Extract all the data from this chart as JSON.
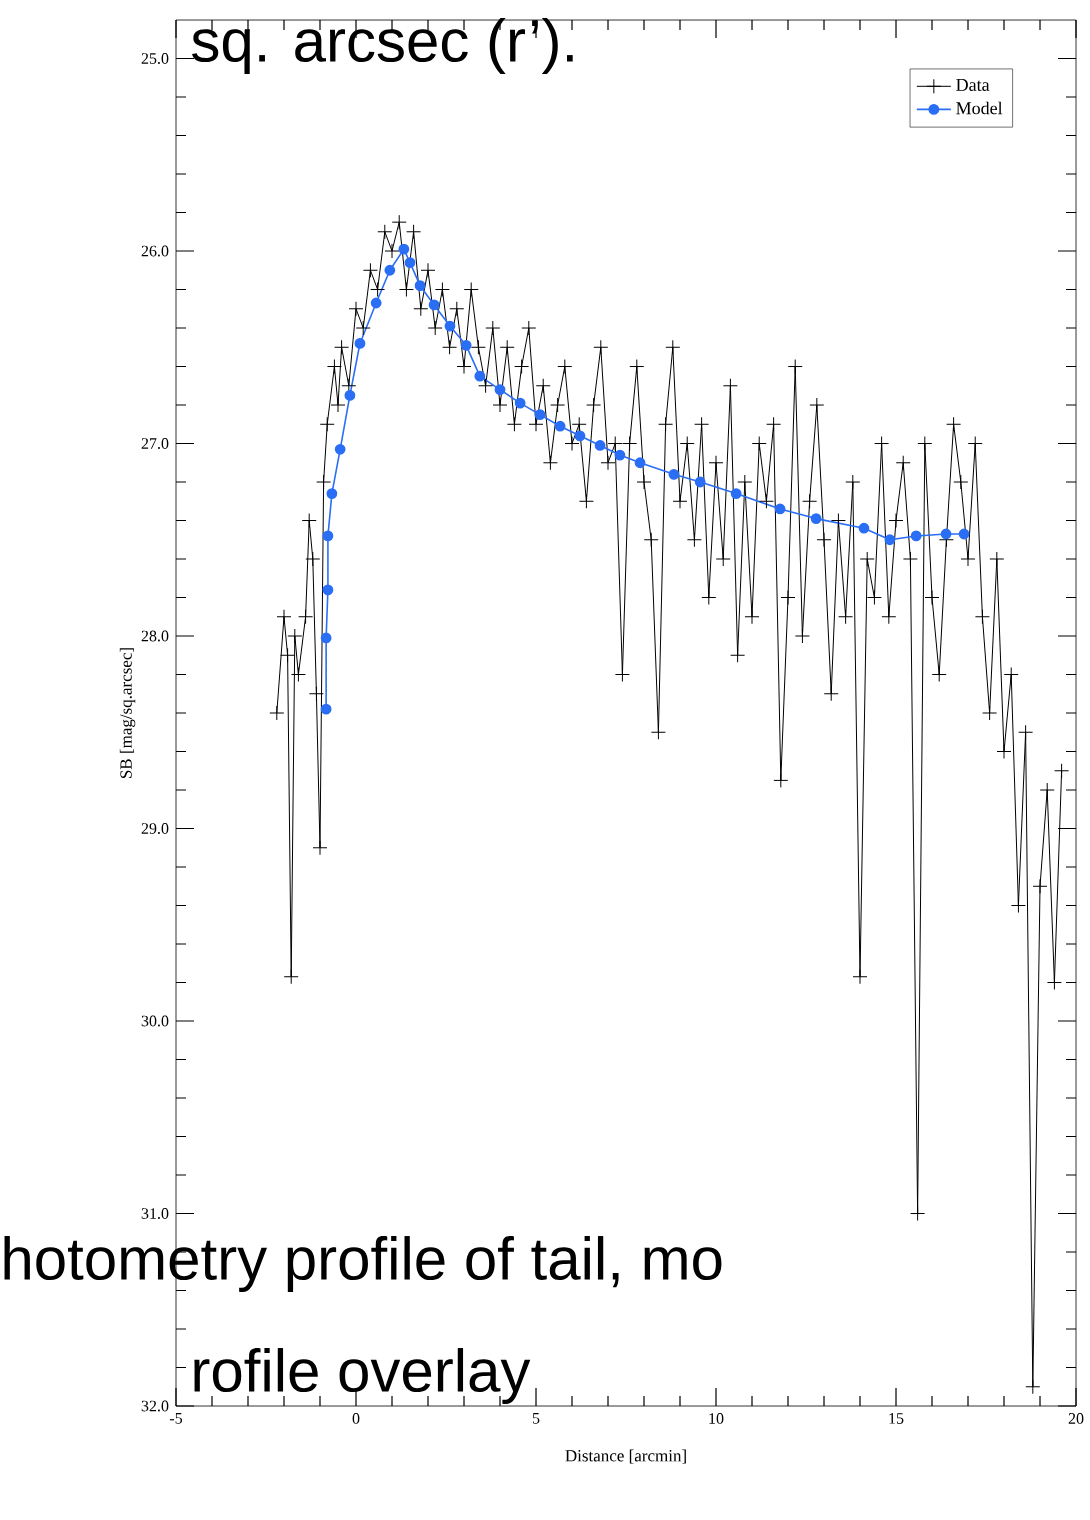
{
  "chart_data": {
    "type": "line",
    "xlabel": "Distance [arcmin]",
    "ylabel": "SB [mag/sq.arcsec]",
    "xlim": [
      -5,
      20
    ],
    "xticks": [
      -5,
      0,
      5,
      10,
      15,
      20
    ],
    "ylim": [
      32,
      24.8
    ],
    "yticks": [
      {
        "value": 25,
        "label": "25.0"
      },
      {
        "value": 26,
        "label": "26.0"
      },
      {
        "value": 27,
        "label": "27.0"
      },
      {
        "value": 28,
        "label": "28.0"
      },
      {
        "value": 29,
        "label": "29.0"
      },
      {
        "value": 30,
        "label": "30.0"
      },
      {
        "value": 31,
        "label": "31.0"
      },
      {
        "value": 32,
        "label": "32.0"
      }
    ],
    "legend": "top right",
    "annotations": [
      "sq. arcsec (r’).",
      "hotometry profile of tail, mo",
      "rofile overlay"
    ],
    "series": [
      {
        "name": "Data",
        "color": "#000000",
        "marker": "cross",
        "x": [
          -2.2,
          -2.0,
          -1.9,
          -1.8,
          -1.7,
          -1.6,
          -1.4,
          -1.3,
          -1.2,
          -1.1,
          -1.0,
          -0.9,
          -0.8,
          -0.6,
          -0.5,
          -0.4,
          -0.2,
          0.0,
          0.2,
          0.4,
          0.6,
          0.8,
          1.0,
          1.2,
          1.4,
          1.6,
          1.8,
          2.0,
          2.2,
          2.4,
          2.6,
          2.8,
          3.0,
          3.2,
          3.4,
          3.6,
          3.8,
          4.0,
          4.2,
          4.4,
          4.6,
          4.8,
          5.0,
          5.2,
          5.4,
          5.6,
          5.8,
          6.0,
          6.2,
          6.4,
          6.6,
          6.8,
          7.0,
          7.2,
          7.4,
          7.6,
          7.8,
          8.0,
          8.2,
          8.4,
          8.6,
          8.8,
          9.0,
          9.2,
          9.4,
          9.6,
          9.8,
          10.0,
          10.2,
          10.4,
          10.6,
          10.8,
          11.0,
          11.2,
          11.4,
          11.6,
          11.8,
          12.0,
          12.2,
          12.4,
          12.6,
          12.8,
          13.0,
          13.2,
          13.4,
          13.6,
          13.8,
          14.0,
          14.2,
          14.4,
          14.6,
          14.8,
          15.0,
          15.2,
          15.4,
          15.6,
          15.8,
          16.0,
          16.2,
          16.4,
          16.6,
          16.8,
          17.0,
          17.2,
          17.4,
          17.6,
          17.8,
          18.0,
          18.2,
          18.4,
          18.6,
          18.8,
          19.0,
          19.2,
          19.4,
          19.6
        ],
        "values": [
          28.4,
          27.9,
          28.1,
          29.77,
          28.0,
          28.2,
          27.9,
          27.4,
          27.6,
          28.3,
          29.1,
          27.2,
          26.9,
          26.6,
          26.8,
          26.5,
          26.7,
          26.3,
          26.4,
          26.1,
          26.2,
          25.9,
          26.0,
          25.85,
          26.2,
          25.9,
          26.3,
          26.1,
          26.4,
          26.2,
          26.5,
          26.3,
          26.6,
          26.2,
          26.5,
          26.7,
          26.4,
          26.8,
          26.5,
          26.9,
          26.6,
          26.4,
          26.9,
          26.7,
          27.1,
          26.8,
          26.6,
          27.0,
          26.9,
          27.3,
          26.8,
          26.5,
          27.1,
          27.0,
          28.2,
          27.0,
          26.6,
          27.2,
          27.5,
          28.5,
          26.9,
          26.5,
          27.3,
          27.0,
          27.5,
          26.9,
          27.8,
          27.1,
          27.6,
          26.7,
          28.1,
          27.2,
          27.9,
          27.0,
          27.3,
          26.9,
          28.75,
          27.8,
          26.6,
          28.0,
          27.3,
          26.8,
          27.5,
          28.3,
          27.4,
          27.9,
          27.2,
          29.77,
          27.6,
          27.8,
          27.0,
          27.9,
          27.4,
          27.1,
          27.6,
          31.0,
          27.0,
          27.8,
          28.2,
          27.5,
          26.9,
          27.2,
          27.6,
          27.0,
          27.9,
          28.4,
          27.6,
          28.6,
          28.2,
          29.4,
          28.5,
          31.9,
          29.3,
          28.8,
          29.8,
          28.7
        ]
      },
      {
        "name": "Model",
        "color": "#2a6ef5",
        "marker": "circle",
        "x": [
          -0.83,
          -0.83,
          -0.78,
          -0.78,
          -0.67,
          -0.44,
          -0.17,
          0.11,
          0.56,
          0.94,
          1.33,
          1.5,
          1.78,
          2.17,
          2.61,
          3.06,
          3.44,
          4.0,
          4.56,
          5.11,
          5.67,
          6.22,
          6.78,
          7.33,
          7.89,
          8.83,
          9.56,
          10.56,
          11.78,
          12.78,
          14.11,
          14.83,
          15.56,
          16.39,
          16.89
        ],
        "values": [
          28.38,
          28.01,
          27.76,
          27.48,
          27.26,
          27.03,
          26.75,
          26.48,
          26.27,
          26.1,
          25.99,
          26.06,
          26.18,
          26.28,
          26.39,
          26.49,
          26.65,
          26.72,
          26.79,
          26.85,
          26.91,
          26.96,
          27.01,
          27.06,
          27.1,
          27.16,
          27.2,
          27.26,
          27.34,
          27.39,
          27.44,
          27.5,
          27.48,
          27.47,
          27.47
        ]
      }
    ]
  }
}
